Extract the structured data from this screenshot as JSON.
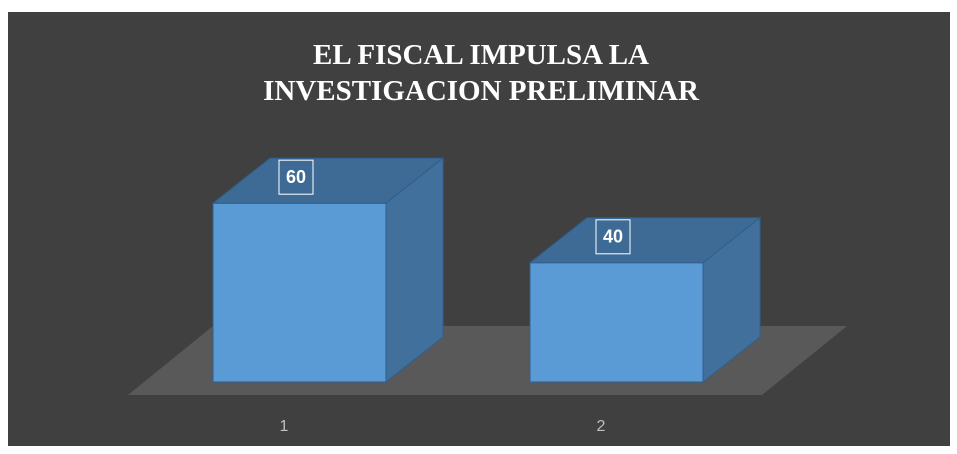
{
  "chart_data": {
    "type": "bar3d",
    "title": "EL FISCAL IMPULSA LA INVESTIGACION PRELIMINAR",
    "categories": [
      "1",
      "2"
    ],
    "values": [
      60,
      40
    ],
    "color": "#5b9bd5"
  }
}
